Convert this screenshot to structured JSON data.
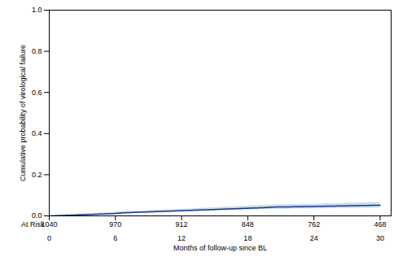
{
  "chart_data": {
    "type": "step",
    "xlabel": "Months of follow-up since BL",
    "ylabel": "Cumulative probability of virological failure",
    "x": [
      0,
      0.5,
      1.0,
      1.5,
      2.0,
      2.5,
      3.0,
      3.5,
      4.0,
      4.5,
      5.0,
      5.5,
      6.0,
      6.5,
      7.0,
      7.5,
      8.0,
      8.5,
      9.0,
      9.5,
      10.0,
      10.5,
      11.0,
      11.5,
      12.0,
      12.5,
      13.0,
      13.5,
      14.0,
      14.5,
      15.0,
      15.5,
      16.0,
      16.5,
      17.0,
      17.5,
      18.0,
      18.5,
      19.0,
      19.5,
      20.0,
      20.5,
      21.0,
      21.5,
      22.0,
      22.5,
      23.0,
      23.5,
      24.0,
      24.5,
      25.0,
      25.5,
      26.0,
      26.5,
      27.0,
      27.5,
      28.0,
      28.5,
      29.0,
      29.5,
      30.0
    ],
    "values": [
      0.0,
      0.001,
      0.002,
      0.003,
      0.004,
      0.005,
      0.006,
      0.007,
      0.008,
      0.009,
      0.01,
      0.011,
      0.013,
      0.015,
      0.016,
      0.017,
      0.018,
      0.019,
      0.02,
      0.021,
      0.022,
      0.023,
      0.024,
      0.025,
      0.026,
      0.027,
      0.028,
      0.029,
      0.03,
      0.031,
      0.032,
      0.033,
      0.034,
      0.035,
      0.036,
      0.037,
      0.038,
      0.039,
      0.04,
      0.041,
      0.042,
      0.043,
      0.043,
      0.043,
      0.044,
      0.044,
      0.045,
      0.045,
      0.046,
      0.046,
      0.047,
      0.047,
      0.048,
      0.048,
      0.049,
      0.049,
      0.05,
      0.05,
      0.051,
      0.051,
      0.052
    ],
    "color": "#1f3a8a",
    "ci_lower": [
      0.0,
      0.0,
      0.001,
      0.001,
      0.002,
      0.003,
      0.003,
      0.004,
      0.005,
      0.005,
      0.006,
      0.007,
      0.008,
      0.01,
      0.011,
      0.012,
      0.013,
      0.013,
      0.014,
      0.015,
      0.016,
      0.017,
      0.018,
      0.018,
      0.019,
      0.02,
      0.021,
      0.022,
      0.023,
      0.023,
      0.024,
      0.025,
      0.026,
      0.027,
      0.027,
      0.028,
      0.029,
      0.03,
      0.03,
      0.031,
      0.032,
      0.033,
      0.033,
      0.033,
      0.034,
      0.034,
      0.034,
      0.034,
      0.035,
      0.035,
      0.035,
      0.036,
      0.036,
      0.036,
      0.037,
      0.037,
      0.037,
      0.038,
      0.038,
      0.038,
      0.039
    ],
    "ci_upper": [
      0.0,
      0.003,
      0.004,
      0.006,
      0.007,
      0.008,
      0.01,
      0.011,
      0.012,
      0.013,
      0.015,
      0.016,
      0.018,
      0.021,
      0.022,
      0.023,
      0.024,
      0.025,
      0.027,
      0.028,
      0.029,
      0.03,
      0.031,
      0.032,
      0.033,
      0.034,
      0.035,
      0.037,
      0.038,
      0.039,
      0.04,
      0.041,
      0.043,
      0.044,
      0.045,
      0.046,
      0.047,
      0.049,
      0.05,
      0.051,
      0.052,
      0.054,
      0.054,
      0.054,
      0.055,
      0.055,
      0.056,
      0.056,
      0.057,
      0.057,
      0.059,
      0.059,
      0.06,
      0.06,
      0.062,
      0.062,
      0.063,
      0.063,
      0.065,
      0.065,
      0.066
    ],
    "ci_color": "#7aaad4",
    "xlim": [
      0,
      31
    ],
    "ylim": [
      0.0,
      1.0
    ],
    "xticks": [
      0,
      6,
      12,
      18,
      24,
      30
    ],
    "yticks": [
      {
        "value": 0.0,
        "label": "0.0"
      },
      0.2,
      0.4,
      0.6,
      0.8,
      {
        "value": 1.0,
        "label": "1.0"
      }
    ],
    "at_risk_label": "At Risk",
    "at_risk_times": [
      0,
      6,
      12,
      18,
      24,
      30
    ],
    "at_risk_counts": [
      1040,
      970,
      912,
      848,
      762,
      468
    ],
    "grid": false
  }
}
